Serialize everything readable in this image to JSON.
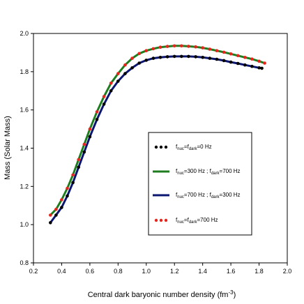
{
  "chart_data": {
    "type": "line",
    "title": "",
    "xlabel": "Central dark baryonic number density (fm",
    "xlabel_unit_exp": "-3",
    "xlabel_close": ")",
    "ylabel": "Mass (Solar Mass)",
    "xlim": [
      0.2,
      2.0
    ],
    "ylim": [
      0.8,
      2.0
    ],
    "xticks": [
      "0.2",
      "0.4",
      "0.6",
      "0.8",
      "1.0",
      "1.2",
      "1.4",
      "1.6",
      "1.8",
      "2.0"
    ],
    "yticks": [
      "0.8",
      "1.0",
      "1.2",
      "1.4",
      "1.6",
      "1.8",
      "2.0"
    ],
    "grid": false,
    "legend_position": "center-right",
    "series": [
      {
        "style": "dots",
        "color": "#000000",
        "legend": {
          "prefix": "f",
          "sub1": "nuc",
          "mid": "=f",
          "sub2": "dark",
          "suffix": "=0 Hz"
        },
        "x": [
          0.32,
          0.36,
          0.4,
          0.44,
          0.48,
          0.52,
          0.56,
          0.6,
          0.65,
          0.7,
          0.75,
          0.8,
          0.85,
          0.9,
          0.95,
          1.0,
          1.05,
          1.1,
          1.15,
          1.2,
          1.25,
          1.3,
          1.35,
          1.4,
          1.45,
          1.5,
          1.55,
          1.6,
          1.65,
          1.7,
          1.75,
          1.8,
          1.82
        ],
        "y": [
          1.01,
          1.05,
          1.09,
          1.15,
          1.22,
          1.3,
          1.38,
          1.46,
          1.55,
          1.63,
          1.7,
          1.75,
          1.79,
          1.82,
          1.845,
          1.86,
          1.87,
          1.875,
          1.878,
          1.88,
          1.88,
          1.88,
          1.878,
          1.875,
          1.87,
          1.865,
          1.858,
          1.85,
          1.843,
          1.835,
          1.828,
          1.82,
          1.818
        ]
      },
      {
        "style": "line",
        "color": "#1e7d1e",
        "legend": {
          "prefix": "f",
          "sub1": "nuc",
          "mid": "=300 Hz ; f",
          "sub2": "dark",
          "suffix": "=700 Hz"
        },
        "x": [
          0.32,
          0.36,
          0.4,
          0.44,
          0.48,
          0.52,
          0.56,
          0.6,
          0.65,
          0.7,
          0.75,
          0.8,
          0.85,
          0.9,
          0.95,
          1.0,
          1.05,
          1.1,
          1.15,
          1.2,
          1.25,
          1.3,
          1.35,
          1.4,
          1.45,
          1.5,
          1.55,
          1.6,
          1.65,
          1.7,
          1.75,
          1.8,
          1.84
        ],
        "y": [
          1.05,
          1.08,
          1.13,
          1.19,
          1.26,
          1.34,
          1.42,
          1.5,
          1.59,
          1.67,
          1.74,
          1.79,
          1.835,
          1.87,
          1.895,
          1.91,
          1.92,
          1.928,
          1.932,
          1.935,
          1.935,
          1.933,
          1.93,
          1.925,
          1.918,
          1.91,
          1.902,
          1.893,
          1.884,
          1.875,
          1.866,
          1.855,
          1.845
        ]
      },
      {
        "style": "line",
        "color": "#0b1670",
        "legend": {
          "prefix": "f",
          "sub1": "nuc",
          "mid": "=700 Hz ; f",
          "sub2": "dark",
          "suffix": "=300 Hz"
        },
        "x": [
          0.32,
          0.36,
          0.4,
          0.44,
          0.48,
          0.52,
          0.56,
          0.6,
          0.65,
          0.7,
          0.75,
          0.8,
          0.85,
          0.9,
          0.95,
          1.0,
          1.05,
          1.1,
          1.15,
          1.2,
          1.25,
          1.3,
          1.35,
          1.4,
          1.45,
          1.5,
          1.55,
          1.6,
          1.65,
          1.7,
          1.75,
          1.8,
          1.82
        ],
        "y": [
          1.01,
          1.05,
          1.09,
          1.15,
          1.22,
          1.3,
          1.38,
          1.46,
          1.55,
          1.63,
          1.7,
          1.75,
          1.79,
          1.82,
          1.845,
          1.86,
          1.87,
          1.875,
          1.878,
          1.88,
          1.88,
          1.88,
          1.878,
          1.875,
          1.87,
          1.865,
          1.858,
          1.85,
          1.843,
          1.835,
          1.828,
          1.82,
          1.818
        ]
      },
      {
        "style": "dots",
        "color": "#e8241c",
        "legend": {
          "prefix": "f",
          "sub1": "nuc",
          "mid": "=f",
          "sub2": "dark",
          "suffix": "=700 Hz"
        },
        "x": [
          0.32,
          0.36,
          0.4,
          0.44,
          0.48,
          0.52,
          0.56,
          0.6,
          0.65,
          0.7,
          0.75,
          0.8,
          0.85,
          0.9,
          0.95,
          1.0,
          1.05,
          1.1,
          1.15,
          1.2,
          1.25,
          1.3,
          1.35,
          1.4,
          1.45,
          1.5,
          1.55,
          1.6,
          1.65,
          1.7,
          1.75,
          1.8,
          1.84
        ],
        "y": [
          1.05,
          1.08,
          1.13,
          1.19,
          1.26,
          1.34,
          1.42,
          1.5,
          1.59,
          1.67,
          1.74,
          1.79,
          1.835,
          1.87,
          1.895,
          1.91,
          1.92,
          1.928,
          1.932,
          1.935,
          1.935,
          1.933,
          1.93,
          1.925,
          1.918,
          1.91,
          1.902,
          1.893,
          1.884,
          1.875,
          1.866,
          1.855,
          1.845
        ]
      }
    ]
  }
}
